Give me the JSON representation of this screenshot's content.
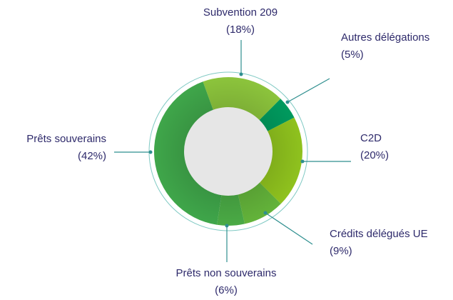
{
  "chart_data": {
    "type": "donut",
    "categories": [
      "Subvention 209",
      "Autres délégations",
      "C2D",
      "Crédits délégués UE",
      "Prêts non souverains",
      "Prêts souverains"
    ],
    "values": [
      18,
      5,
      20,
      9,
      6,
      42
    ],
    "value_labels": [
      "(18%)",
      "(5%)",
      "(20%)",
      "(9%)",
      "(6%)",
      "(42%)"
    ],
    "colors": [
      "#8cc43c",
      "#009a5e",
      "#8fc21e",
      "#63b33a",
      "#4aaa45",
      "#3fa64a"
    ]
  }
}
